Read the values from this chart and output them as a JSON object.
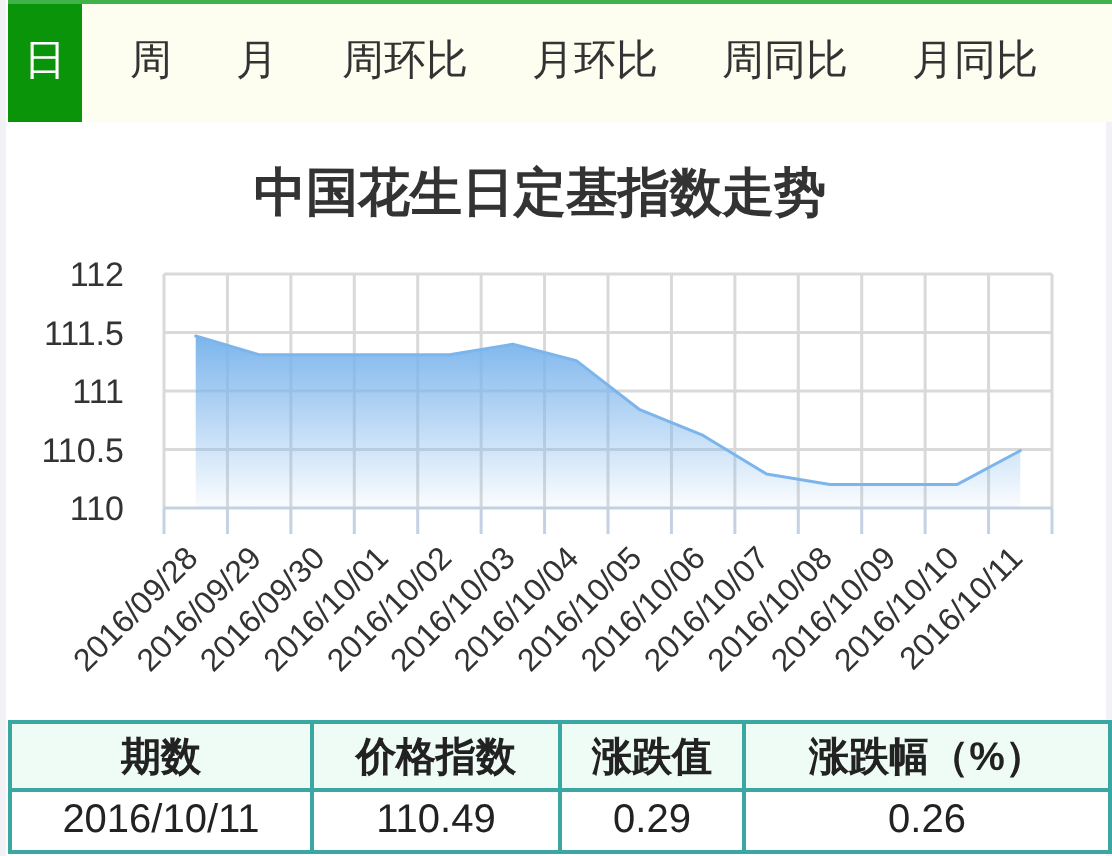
{
  "chart_data": [
    {
      "type": "other",
      "annotations": [
        "日",
        "周",
        "月",
        "周环比",
        "月环比",
        "周同比",
        "月同比"
      ]
    },
    {
      "type": "area",
      "title": "中国花生日定基指数走势",
      "categories": [
        "2016/09/28",
        "2016/09/29",
        "2016/09/30",
        "2016/10/01",
        "2016/10/02",
        "2016/10/03",
        "2016/10/04",
        "2016/10/05",
        "2016/10/06",
        "2016/10/07",
        "2016/10/08",
        "2016/10/09",
        "2016/10/10",
        "2016/10/11"
      ],
      "values": [
        111.47,
        111.31,
        111.31,
        111.31,
        111.31,
        111.4,
        111.26,
        110.84,
        110.62,
        110.29,
        110.2,
        110.2,
        110.2,
        110.49
      ],
      "color": "#7cb5ec",
      "ylim": [
        110,
        112
      ],
      "yticks": [
        110,
        110.5,
        111,
        111.5,
        112
      ],
      "grid": true
    },
    {
      "type": "other",
      "categories": [
        "期数",
        "价格指数",
        "涨跌值",
        "涨跌幅（%）"
      ],
      "cell_labels": [
        [
          "2016/10/11",
          "110.49",
          "0.29",
          "0.26"
        ]
      ]
    }
  ]
}
